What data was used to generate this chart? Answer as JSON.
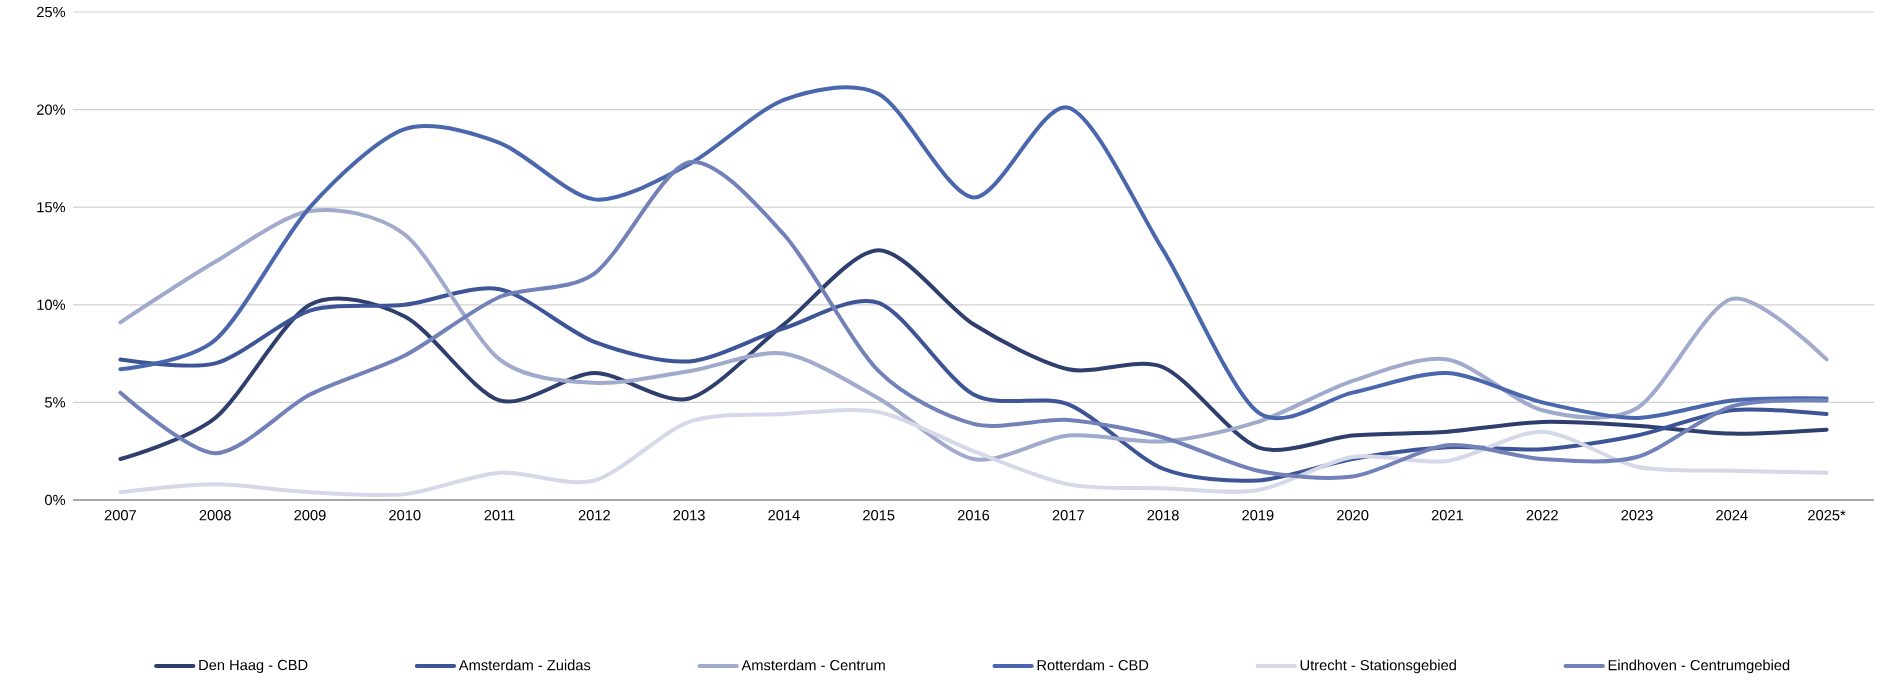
{
  "chart_data": {
    "type": "line",
    "categories": [
      "2007",
      "2008",
      "2009",
      "2010",
      "2011",
      "2012",
      "2013",
      "2014",
      "2015",
      "2016",
      "2017",
      "2018",
      "2019",
      "2020",
      "2021",
      "2022",
      "2023",
      "2024",
      "2025*"
    ],
    "ylim": [
      0,
      25
    ],
    "yticks": [
      {
        "value": 0,
        "label": "0%"
      },
      {
        "value": 5,
        "label": "5%"
      },
      {
        "value": 10,
        "label": "10%"
      },
      {
        "value": 15,
        "label": "15%"
      },
      {
        "value": 20,
        "label": "20%"
      },
      {
        "value": 25,
        "label": "25%"
      }
    ],
    "grid": "y",
    "legend": "bottom",
    "marker": "none",
    "line_style": "solid",
    "series": [
      {
        "name": "Den Haag - CBD",
        "color": "#2e3f6e",
        "values": [
          2.1,
          4.2,
          10.0,
          9.4,
          5.1,
          6.5,
          5.2,
          9.0,
          12.8,
          9.0,
          6.7,
          6.8,
          2.7,
          3.3,
          3.5,
          4.0,
          3.8,
          3.4,
          3.6
        ]
      },
      {
        "name": "Amsterdam - Zuidas",
        "color": "#3d5597",
        "values": [
          7.2,
          7.0,
          9.7,
          10.0,
          10.8,
          8.1,
          7.1,
          8.8,
          10.1,
          5.4,
          4.9,
          1.6,
          1.0,
          2.1,
          2.7,
          2.6,
          3.3,
          4.6,
          4.4
        ]
      },
      {
        "name": "Amsterdam - Centrum",
        "color": "#a0aacc",
        "values": [
          9.1,
          12.2,
          14.8,
          13.6,
          7.2,
          6.0,
          6.6,
          7.5,
          5.2,
          2.1,
          3.3,
          3.0,
          4.0,
          6.1,
          7.2,
          4.6,
          4.7,
          10.3,
          7.2
        ]
      },
      {
        "name": "Rotterdam - CBD",
        "color": "#4a67ad",
        "values": [
          6.7,
          8.2,
          15.0,
          19.0,
          18.3,
          15.4,
          17.2,
          20.5,
          20.8,
          15.5,
          20.1,
          12.8,
          4.5,
          5.5,
          6.5,
          5.0,
          4.2,
          5.1,
          5.2
        ]
      },
      {
        "name": "Utrecht - Stationsgebied",
        "color": "#d4d8e8",
        "values": [
          0.4,
          0.8,
          0.4,
          0.3,
          1.4,
          1.0,
          4.0,
          4.4,
          4.5,
          2.5,
          0.8,
          0.6,
          0.5,
          2.2,
          2.0,
          3.5,
          1.7,
          1.5,
          1.4
        ]
      },
      {
        "name": "Eindhoven - Centrumgebied",
        "color": "#7282b9",
        "values": [
          5.5,
          2.4,
          5.4,
          7.4,
          10.4,
          11.6,
          17.3,
          13.6,
          6.6,
          3.9,
          4.1,
          3.2,
          1.5,
          1.2,
          2.8,
          2.1,
          2.2,
          4.8,
          5.1
        ]
      }
    ]
  }
}
